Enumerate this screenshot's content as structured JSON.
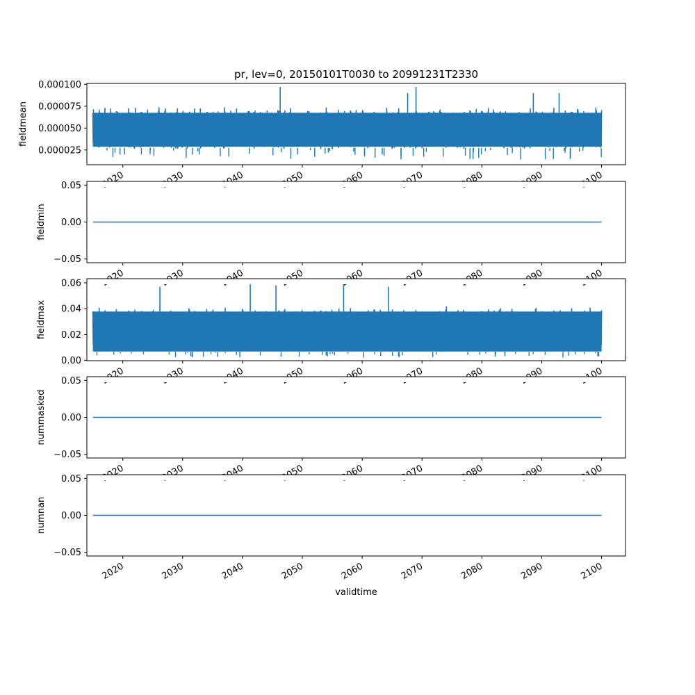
{
  "chart_data": [
    {
      "type": "line",
      "title": "pr, lev=0, 20150101T0030 to 20991231T2330",
      "ylabel": "fieldmean",
      "xlim": [
        2014.0,
        2104.0
      ],
      "ylim": [
        8.2e-06,
        0.000101
      ],
      "yticks": [
        2.5e-05,
        5e-05,
        7.5e-05,
        0.0001
      ],
      "ytick_labels": [
        "0.000025",
        "0.000050",
        "0.000075",
        "0.000100"
      ],
      "series": [
        {
          "color": "#1f77b4",
          "x_range": [
            "20150101T0030",
            "20991231T2330"
          ],
          "envelope": {
            "min": 1.4e-05,
            "max": 9.7e-05
          },
          "typical_band": {
            "low": 2.5e-05,
            "high": 7.5e-05
          },
          "notable_peaks": [
            {
              "x": 2046.3,
              "y": 9.7e-05
            },
            {
              "x": 2069.0,
              "y": 9.7e-05
            },
            {
              "x": 2067.6,
              "y": 9e-05
            },
            {
              "x": 2088.6,
              "y": 9e-05
            },
            {
              "x": 2092.9,
              "y": 9e-05
            }
          ]
        }
      ]
    },
    {
      "type": "line",
      "ylabel": "fieldmin",
      "xlim": [
        2014.0,
        2104.0
      ],
      "ylim": [
        -0.055,
        0.055
      ],
      "yticks": [
        -0.05,
        0,
        0.05
      ],
      "ytick_labels": [
        "−0.05",
        "0.00",
        "0.05"
      ],
      "series": [
        {
          "color": "#1f77b4",
          "x_range": [
            "20150101T0030",
            "20991231T2330"
          ],
          "constant": 0.0
        }
      ]
    },
    {
      "type": "line",
      "ylabel": "fieldmax",
      "xlim": [
        2014.0,
        2104.0
      ],
      "ylim": [
        -0.0002,
        0.0632
      ],
      "yticks": [
        0,
        0.02,
        0.04,
        0.06
      ],
      "ytick_labels": [
        "0.00",
        "0.02",
        "0.04",
        "0.06"
      ],
      "series": [
        {
          "color": "#1f77b4",
          "x_range": [
            "20150101T0030",
            "20991231T2330"
          ],
          "envelope": {
            "min": 0.002,
            "max": 0.06
          },
          "typical_band": {
            "low": 0.006,
            "high": 0.042
          },
          "notable_peaks": [
            {
              "x": 2041.3,
              "y": 0.06
            },
            {
              "x": 2056.9,
              "y": 0.06
            },
            {
              "x": 2045.6,
              "y": 0.058
            },
            {
              "x": 2064.4,
              "y": 0.057
            },
            {
              "x": 2026.2,
              "y": 0.057
            }
          ]
        }
      ]
    },
    {
      "type": "line",
      "ylabel": "nummasked",
      "xlim": [
        2014.0,
        2104.0
      ],
      "ylim": [
        -0.055,
        0.055
      ],
      "yticks": [
        -0.05,
        0,
        0.05
      ],
      "ytick_labels": [
        "−0.05",
        "0.00",
        "0.05"
      ],
      "series": [
        {
          "color": "#1f77b4",
          "x_range": [
            "20150101T0030",
            "20991231T2330"
          ],
          "constant": 0.0
        }
      ]
    },
    {
      "type": "line",
      "ylabel": "numnan",
      "xlabel": "validtime",
      "xlim": [
        2014.0,
        2104.0
      ],
      "ylim": [
        -0.055,
        0.055
      ],
      "yticks": [
        -0.05,
        0,
        0.05
      ],
      "ytick_labels": [
        "−0.05",
        "0.00",
        "0.05"
      ],
      "series": [
        {
          "color": "#1f77b4",
          "x_range": [
            "20150101T0030",
            "20991231T2330"
          ],
          "constant": 0.0
        }
      ]
    }
  ],
  "x_axis": {
    "ticks": [
      2020,
      2030,
      2040,
      2050,
      2060,
      2070,
      2080,
      2090,
      2100
    ],
    "tick_labels": [
      "2020",
      "2030",
      "2040",
      "2050",
      "2060",
      "2070",
      "2080",
      "2090",
      "2100"
    ]
  },
  "colors": {
    "series": "#1f77b4",
    "axes": "#000000",
    "background": "#ffffff"
  }
}
